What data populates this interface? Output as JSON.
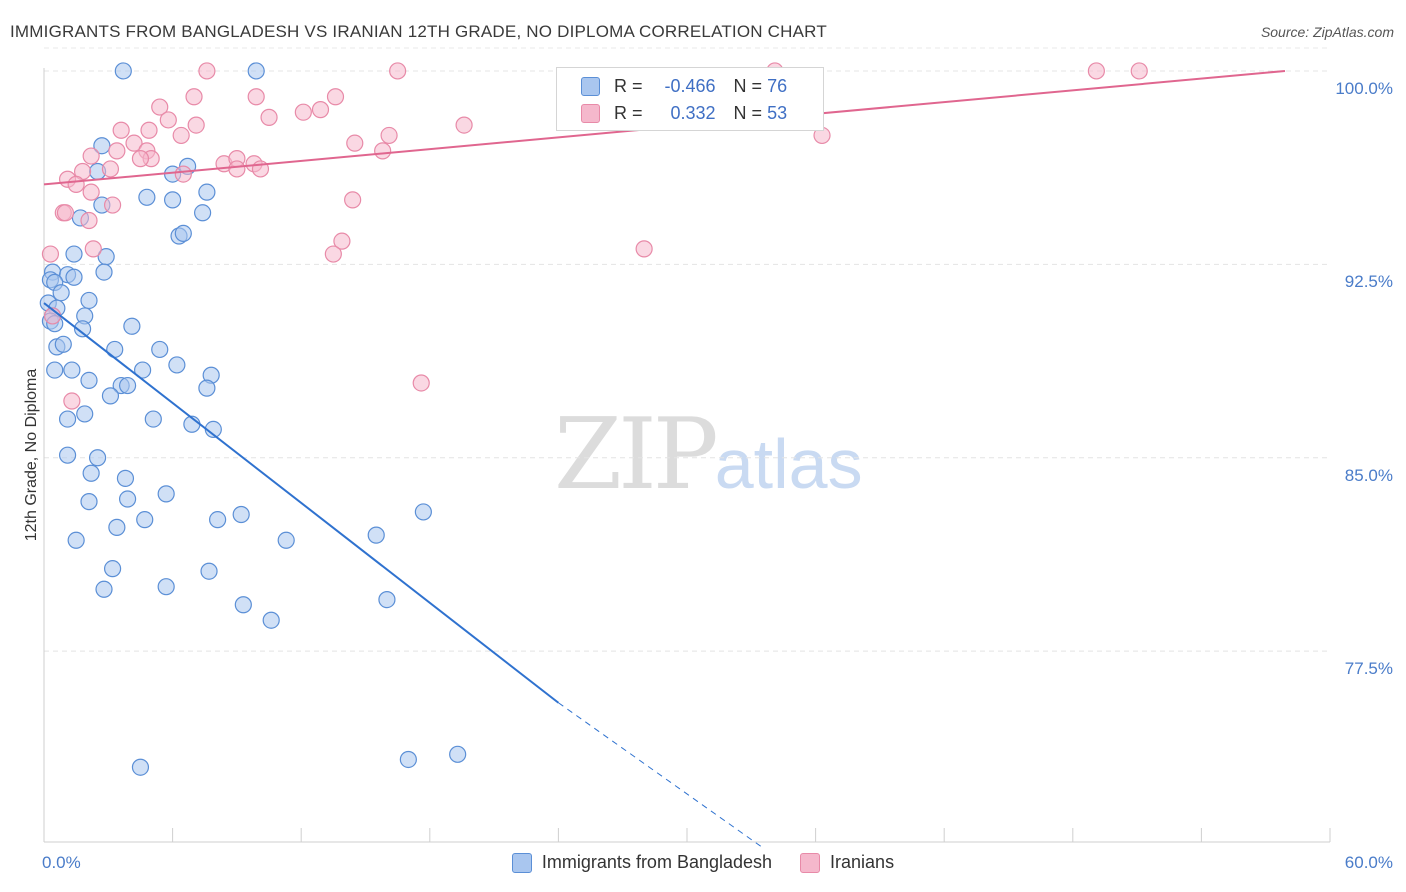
{
  "header": {
    "title": "IMMIGRANTS FROM BANGLADESH VS IRANIAN 12TH GRADE, NO DIPLOMA CORRELATION CHART",
    "source": "Source: ZipAtlas.com"
  },
  "watermark": {
    "zip": "ZIP",
    "atlas": "atlas"
  },
  "stats_box": {
    "rows": [
      {
        "r_label": "R =",
        "r_value": "-0.466",
        "n_label": "N =",
        "n_value": "76",
        "color": "#a9c6ef"
      },
      {
        "r_label": "R =",
        "r_value": "0.332",
        "n_label": "N =",
        "n_value": "53",
        "color": "#f5b8cc"
      }
    ]
  },
  "legend": {
    "items": [
      {
        "label": "Immigrants from Bangladesh",
        "color": "#a9c6ef"
      },
      {
        "label": "Iranians",
        "color": "#f5b8cc"
      }
    ]
  },
  "colors": {
    "blue_fill": "#a9c6ef",
    "blue_stroke": "#5b8fd6",
    "blue_line": "#2f72cf",
    "pink_fill": "#f5b8cc",
    "pink_stroke": "#e88aa8",
    "pink_line": "#e0668f"
  },
  "chart_data": {
    "type": "scatter",
    "title": "IMMIGRANTS FROM BANGLADESH VS IRANIAN 12TH GRADE, NO DIPLOMA CORRELATION CHART",
    "xlabel": "",
    "ylabel": "12th Grade, No Diploma",
    "xlim": [
      0,
      60
    ],
    "ylim": [
      70.1,
      101.2
    ],
    "x_tick_labels": [
      "0.0%",
      "60.0%"
    ],
    "y_ticks": [
      77.5,
      85.0,
      92.5,
      100.0
    ],
    "y_tick_labels": [
      "77.5%",
      "85.0%",
      "92.5%",
      "100.0%"
    ],
    "grid": true,
    "series": [
      {
        "name": "Immigrants from Bangladesh",
        "points": [
          [
            3.7,
            100.0
          ],
          [
            9.9,
            100.0
          ],
          [
            2.7,
            97.1
          ],
          [
            2.5,
            96.1
          ],
          [
            6.0,
            96.0
          ],
          [
            6.7,
            96.3
          ],
          [
            7.6,
            95.3
          ],
          [
            4.8,
            95.1
          ],
          [
            6.0,
            95.0
          ],
          [
            2.7,
            94.8
          ],
          [
            1.7,
            94.3
          ],
          [
            7.4,
            94.5
          ],
          [
            6.3,
            93.6
          ],
          [
            6.5,
            93.7
          ],
          [
            1.4,
            92.9
          ],
          [
            2.9,
            92.8
          ],
          [
            0.4,
            92.2
          ],
          [
            1.1,
            92.1
          ],
          [
            2.8,
            92.2
          ],
          [
            1.4,
            92.0
          ],
          [
            0.3,
            91.9
          ],
          [
            0.5,
            91.8
          ],
          [
            0.8,
            91.4
          ],
          [
            2.1,
            91.1
          ],
          [
            0.2,
            91.0
          ],
          [
            0.6,
            90.8
          ],
          [
            0.4,
            90.5
          ],
          [
            1.9,
            90.5
          ],
          [
            0.3,
            90.3
          ],
          [
            0.5,
            90.2
          ],
          [
            1.8,
            90.0
          ],
          [
            4.1,
            90.1
          ],
          [
            0.6,
            89.3
          ],
          [
            0.9,
            89.4
          ],
          [
            3.3,
            89.2
          ],
          [
            5.4,
            89.2
          ],
          [
            0.5,
            88.4
          ],
          [
            1.3,
            88.4
          ],
          [
            4.6,
            88.4
          ],
          [
            6.2,
            88.6
          ],
          [
            2.1,
            88.0
          ],
          [
            7.8,
            88.2
          ],
          [
            3.6,
            87.8
          ],
          [
            3.9,
            87.8
          ],
          [
            7.6,
            87.7
          ],
          [
            3.1,
            87.4
          ],
          [
            1.1,
            86.5
          ],
          [
            1.9,
            86.7
          ],
          [
            5.1,
            86.5
          ],
          [
            6.9,
            86.3
          ],
          [
            7.9,
            86.1
          ],
          [
            1.1,
            85.1
          ],
          [
            2.5,
            85.0
          ],
          [
            2.2,
            84.4
          ],
          [
            3.8,
            84.2
          ],
          [
            5.7,
            83.6
          ],
          [
            2.1,
            83.3
          ],
          [
            3.9,
            83.4
          ],
          [
            4.7,
            82.6
          ],
          [
            8.1,
            82.6
          ],
          [
            9.2,
            82.8
          ],
          [
            17.7,
            82.9
          ],
          [
            3.4,
            82.3
          ],
          [
            1.5,
            81.8
          ],
          [
            11.3,
            81.8
          ],
          [
            15.5,
            82.0
          ],
          [
            3.2,
            80.7
          ],
          [
            7.7,
            80.6
          ],
          [
            2.8,
            79.9
          ],
          [
            5.7,
            80.0
          ],
          [
            9.3,
            79.3
          ],
          [
            10.6,
            78.7
          ],
          [
            16.0,
            79.5
          ],
          [
            4.5,
            73.0
          ],
          [
            17.0,
            73.3
          ],
          [
            19.3,
            73.5
          ]
        ]
      },
      {
        "name": "Iranians",
        "points": [
          [
            7.6,
            100.0
          ],
          [
            16.5,
            100.0
          ],
          [
            34.1,
            100.0
          ],
          [
            49.1,
            100.0
          ],
          [
            51.1,
            100.0
          ],
          [
            7.0,
            99.0
          ],
          [
            9.9,
            99.0
          ],
          [
            13.6,
            99.0
          ],
          [
            5.4,
            98.6
          ],
          [
            12.9,
            98.5
          ],
          [
            12.1,
            98.4
          ],
          [
            10.5,
            98.2
          ],
          [
            5.8,
            98.1
          ],
          [
            25.0,
            98.1
          ],
          [
            19.6,
            97.9
          ],
          [
            7.1,
            97.9
          ],
          [
            3.6,
            97.7
          ],
          [
            4.9,
            97.7
          ],
          [
            6.4,
            97.5
          ],
          [
            16.1,
            97.5
          ],
          [
            36.3,
            97.5
          ],
          [
            14.5,
            97.2
          ],
          [
            4.2,
            97.2
          ],
          [
            2.2,
            96.7
          ],
          [
            3.4,
            96.9
          ],
          [
            4.8,
            96.9
          ],
          [
            5.0,
            96.6
          ],
          [
            8.4,
            96.4
          ],
          [
            9.0,
            96.6
          ],
          [
            9.8,
            96.4
          ],
          [
            15.8,
            96.9
          ],
          [
            4.5,
            96.6
          ],
          [
            3.1,
            96.2
          ],
          [
            1.8,
            96.1
          ],
          [
            9.0,
            96.2
          ],
          [
            10.1,
            96.2
          ],
          [
            6.5,
            96.0
          ],
          [
            1.1,
            95.8
          ],
          [
            1.5,
            95.6
          ],
          [
            2.2,
            95.3
          ],
          [
            14.4,
            95.0
          ],
          [
            3.2,
            94.8
          ],
          [
            0.9,
            94.5
          ],
          [
            1.0,
            94.5
          ],
          [
            2.1,
            94.2
          ],
          [
            2.3,
            93.1
          ],
          [
            13.9,
            93.4
          ],
          [
            13.5,
            92.9
          ],
          [
            28.0,
            93.1
          ],
          [
            0.3,
            92.9
          ],
          [
            0.4,
            90.5
          ],
          [
            17.6,
            87.9
          ],
          [
            1.3,
            87.2
          ]
        ]
      }
    ],
    "trend_lines": [
      {
        "series": "Immigrants from Bangladesh",
        "x0": 0.0,
        "y0": 91.0,
        "x1": 24.0,
        "y1": 75.5,
        "dashed_to_x": 33.5,
        "dashed_to_y": 69.9
      },
      {
        "series": "Iranians",
        "x0": 0.0,
        "y0": 95.6,
        "x1": 57.9,
        "y1": 100.0
      }
    ]
  }
}
